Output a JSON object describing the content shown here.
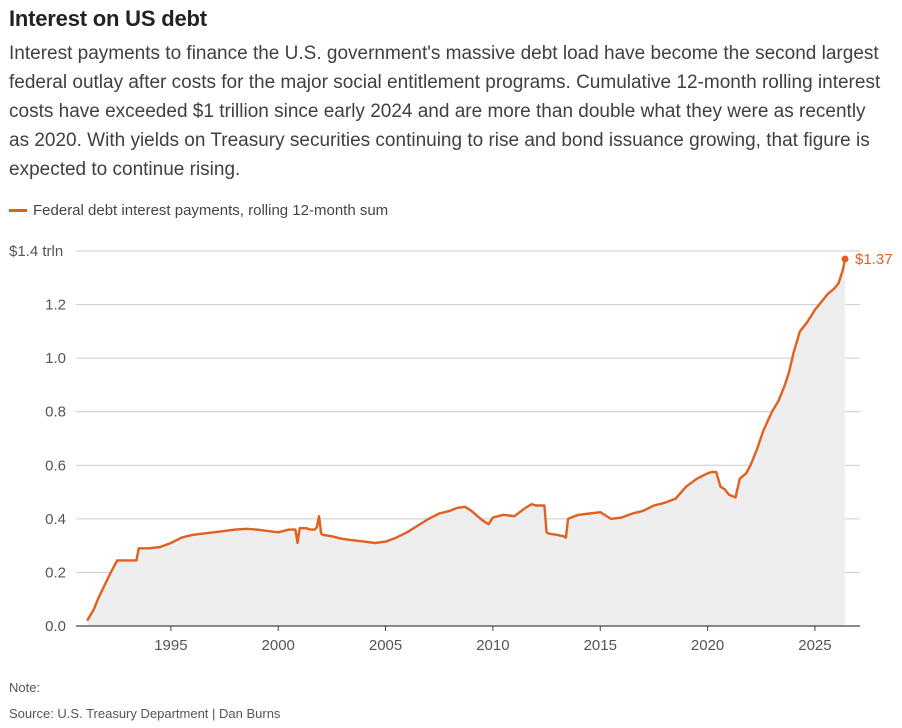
{
  "header": {
    "title": "Interest on US debt",
    "subtitle": "Interest payments to finance the U.S. government's massive debt load have become the second largest federal outlay after costs for the major social entitlement programs. Cumulative 12-month rolling interest costs have exceeded $1 trillion since early 2024 and are more than double what they were as recently as 2020. With yields on Treasury securities continuing to rise and bond issuance growing, that figure is expected to continue rising."
  },
  "legend": {
    "label": "Federal debt interest payments, rolling 12-month sum"
  },
  "footer": {
    "note": "Note:",
    "source": "Source: U.S. Treasury Department | Dan Burns"
  },
  "colors": {
    "line": "#e06020",
    "area": "#eeeeee",
    "grid": "#cccccc",
    "axis": "#444444"
  },
  "chart_data": {
    "type": "area",
    "title": "Interest on US debt",
    "xlabel": "",
    "ylabel": "",
    "ylim": [
      0,
      1.4
    ],
    "xlim": [
      1991,
      2026.6
    ],
    "y_ticks": [
      0,
      0.2,
      0.4,
      0.6,
      0.8,
      1.0,
      1.2,
      1.4
    ],
    "y_tick_labels": [
      "0.0",
      "0.2",
      "0.4",
      "0.6",
      "0.8",
      "1.0",
      "1.2",
      "$1.4 trln"
    ],
    "x_ticks": [
      1995,
      2000,
      2005,
      2010,
      2015,
      2020,
      2025
    ],
    "x_tick_labels": [
      "1995",
      "2000",
      "2005",
      "2010",
      "2015",
      "2020",
      "2025"
    ],
    "grid": true,
    "legend_position": "top-left",
    "end_label": "$1.37",
    "series": [
      {
        "name": "Federal debt interest payments, rolling 12-month sum",
        "x": [
          1991.1,
          1991.4,
          1991.6,
          1991.9,
          1992.2,
          1992.5,
          1993.0,
          1993.4,
          1993.5,
          1994.0,
          1994.5,
          1995.0,
          1995.5,
          1996.0,
          1996.5,
          1997.0,
          1997.5,
          1998.0,
          1998.5,
          1999.0,
          1999.5,
          2000.0,
          2000.5,
          2000.8,
          2000.9,
          2001.0,
          2001.3,
          2001.5,
          2001.7,
          2001.8,
          2001.9,
          2002.0,
          2002.1,
          2002.5,
          2003.0,
          2003.5,
          2004.0,
          2004.5,
          2005.0,
          2005.5,
          2006.0,
          2006.5,
          2007.0,
          2007.5,
          2008.0,
          2008.3,
          2008.7,
          2009.0,
          2009.5,
          2009.8,
          2010.0,
          2010.5,
          2011.0,
          2011.5,
          2011.8,
          2012.0,
          2012.4,
          2012.5,
          2012.6,
          2013.0,
          2013.3,
          2013.4,
          2013.5,
          2013.8,
          2014.0,
          2014.5,
          2015.0,
          2015.5,
          2016.0,
          2016.5,
          2017.0,
          2017.5,
          2018.0,
          2018.5,
          2019.0,
          2019.5,
          2020.0,
          2020.2,
          2020.4,
          2020.6,
          2020.8,
          2021.0,
          2021.3,
          2021.5,
          2021.8,
          2022.0,
          2022.3,
          2022.6,
          2023.0,
          2023.3,
          2023.6,
          2023.8,
          2024.0,
          2024.3,
          2024.6,
          2025.0,
          2025.3,
          2025.6,
          2025.9,
          2026.1,
          2026.3,
          2026.4
        ],
        "values": [
          0.02,
          0.06,
          0.1,
          0.15,
          0.2,
          0.245,
          0.245,
          0.245,
          0.29,
          0.29,
          0.295,
          0.31,
          0.33,
          0.34,
          0.345,
          0.35,
          0.355,
          0.36,
          0.363,
          0.36,
          0.355,
          0.35,
          0.36,
          0.36,
          0.31,
          0.365,
          0.365,
          0.36,
          0.36,
          0.37,
          0.41,
          0.345,
          0.34,
          0.335,
          0.325,
          0.32,
          0.315,
          0.31,
          0.315,
          0.33,
          0.35,
          0.375,
          0.4,
          0.42,
          0.43,
          0.44,
          0.445,
          0.43,
          0.395,
          0.38,
          0.405,
          0.415,
          0.41,
          0.44,
          0.455,
          0.45,
          0.45,
          0.35,
          0.345,
          0.34,
          0.335,
          0.33,
          0.4,
          0.41,
          0.415,
          0.42,
          0.425,
          0.4,
          0.405,
          0.42,
          0.43,
          0.45,
          0.46,
          0.475,
          0.52,
          0.55,
          0.57,
          0.575,
          0.575,
          0.52,
          0.51,
          0.49,
          0.48,
          0.55,
          0.57,
          0.6,
          0.66,
          0.73,
          0.8,
          0.84,
          0.9,
          0.95,
          1.02,
          1.1,
          1.13,
          1.18,
          1.21,
          1.24,
          1.26,
          1.28,
          1.33,
          1.37
        ]
      }
    ]
  }
}
